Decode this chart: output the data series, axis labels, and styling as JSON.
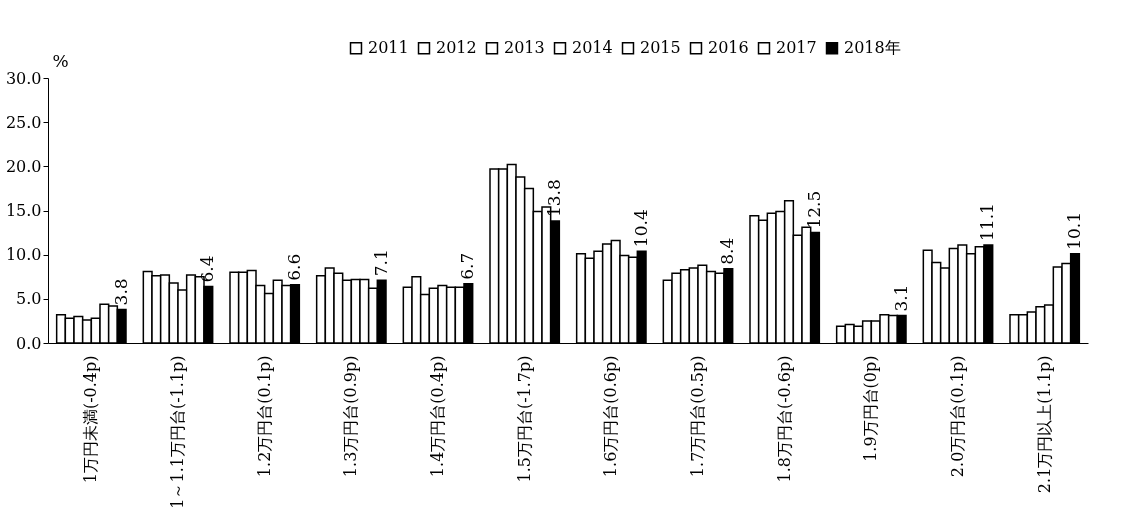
{
  "chart_data": {
    "type": "bar",
    "ylabel": "%",
    "legend": "top",
    "grid": false,
    "categories": [
      "1万円未満(-0.4p)",
      "1～1.1万円台(-1.1p)",
      "1.2万円台(0.1p)",
      "1.3万円台(0.9p)",
      "1.4万円台(0.4p)",
      "1.5万円台(-1.7p)",
      "1.6万円台(0.6p)",
      "1.7万円台(0.5p)",
      "1.8万円台(-0.6p)",
      "1.9万円台(0p)",
      "2.0万円台(0.1p)",
      "2.1万円以上(1.1p)"
    ],
    "ylim": [
      0,
      30
    ],
    "yticks": [
      {
        "value": 0,
        "label": "0.0"
      },
      {
        "value": 5,
        "label": "5.0"
      },
      {
        "value": 10,
        "label": "10.0"
      },
      {
        "value": 15,
        "label": "15.0"
      },
      {
        "value": 20,
        "label": "20.0"
      },
      {
        "value": 25,
        "label": "25.0"
      },
      {
        "value": 30,
        "label": "30.0"
      }
    ],
    "series": [
      {
        "name": "2011",
        "color": "#ffffff",
        "values": [
          3.2,
          8.1,
          8.0,
          7.6,
          6.3,
          19.7,
          10.1,
          7.1,
          14.4,
          1.9,
          10.5,
          3.2
        ]
      },
      {
        "name": "2012",
        "color": "#ffffff",
        "values": [
          2.8,
          7.6,
          8.0,
          8.5,
          7.5,
          19.7,
          9.6,
          7.9,
          13.9,
          2.1,
          9.1,
          3.2
        ]
      },
      {
        "name": "2013",
        "color": "#ffffff",
        "values": [
          3.0,
          7.7,
          8.2,
          7.9,
          5.5,
          20.2,
          10.4,
          8.3,
          14.7,
          1.9,
          8.5,
          3.5
        ]
      },
      {
        "name": "2014",
        "color": "#ffffff",
        "values": [
          2.6,
          6.8,
          6.5,
          7.1,
          6.2,
          18.8,
          11.2,
          8.5,
          14.9,
          2.5,
          10.7,
          4.1
        ]
      },
      {
        "name": "2015",
        "color": "#ffffff",
        "values": [
          2.8,
          6.0,
          5.6,
          7.2,
          6.5,
          17.5,
          11.6,
          8.8,
          16.1,
          2.5,
          11.1,
          4.3
        ]
      },
      {
        "name": "2016",
        "color": "#ffffff",
        "values": [
          4.4,
          7.7,
          7.1,
          7.2,
          6.3,
          14.9,
          9.9,
          8.1,
          12.2,
          3.2,
          10.1,
          8.6
        ]
      },
      {
        "name": "2017",
        "color": "#ffffff",
        "values": [
          4.2,
          7.5,
          6.5,
          6.2,
          6.3,
          15.4,
          9.7,
          7.9,
          13.1,
          3.1,
          10.9,
          9.0
        ]
      },
      {
        "name": "2018年",
        "color": "#000000",
        "values": [
          3.8,
          6.4,
          6.6,
          7.1,
          6.7,
          13.8,
          10.4,
          8.4,
          12.5,
          3.1,
          11.1,
          10.1
        ],
        "value_labels": [
          "3.8",
          "6.4",
          "6.6",
          "7.1",
          "6.7",
          "13.8",
          "10.4",
          "8.4",
          "12.5",
          "3.1",
          "11.1",
          "10.1"
        ]
      }
    ]
  }
}
